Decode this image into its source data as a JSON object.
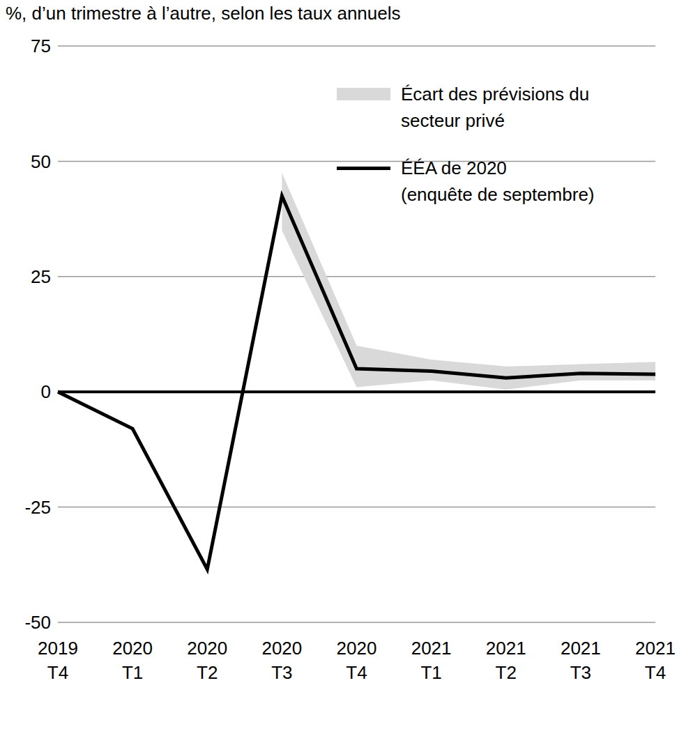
{
  "chart_data": {
    "type": "line",
    "title": "%, d’un trimestre à l’autre, selon les taux annuels",
    "categories": [
      "2019\nT4",
      "2020\nT1",
      "2020\nT2",
      "2020\nT3",
      "2020\nT4",
      "2021\nT1",
      "2021\nT2",
      "2021\nT3",
      "2021\nT4"
    ],
    "series": [
      {
        "name": "Écart des prévisions du secteur privé",
        "type": "range",
        "color": "#d9d9d9",
        "values": [
          null,
          null,
          null,
          [
            35,
            47.5
          ],
          [
            1,
            10
          ],
          [
            2.5,
            7
          ],
          [
            0.5,
            5.5
          ],
          [
            2.5,
            6
          ],
          [
            2.5,
            6.5
          ]
        ]
      },
      {
        "name": "ÉÉA de 2020\n(enquête de septembre)",
        "type": "line",
        "color": "#000000",
        "values": [
          0,
          -8,
          -38.5,
          42.5,
          5,
          4.5,
          3,
          4,
          3.8
        ]
      }
    ],
    "ylim": [
      -50,
      75
    ],
    "yticks": [
      -50,
      -25,
      0,
      25,
      50,
      75
    ],
    "grid": true,
    "legend": "upper right"
  }
}
